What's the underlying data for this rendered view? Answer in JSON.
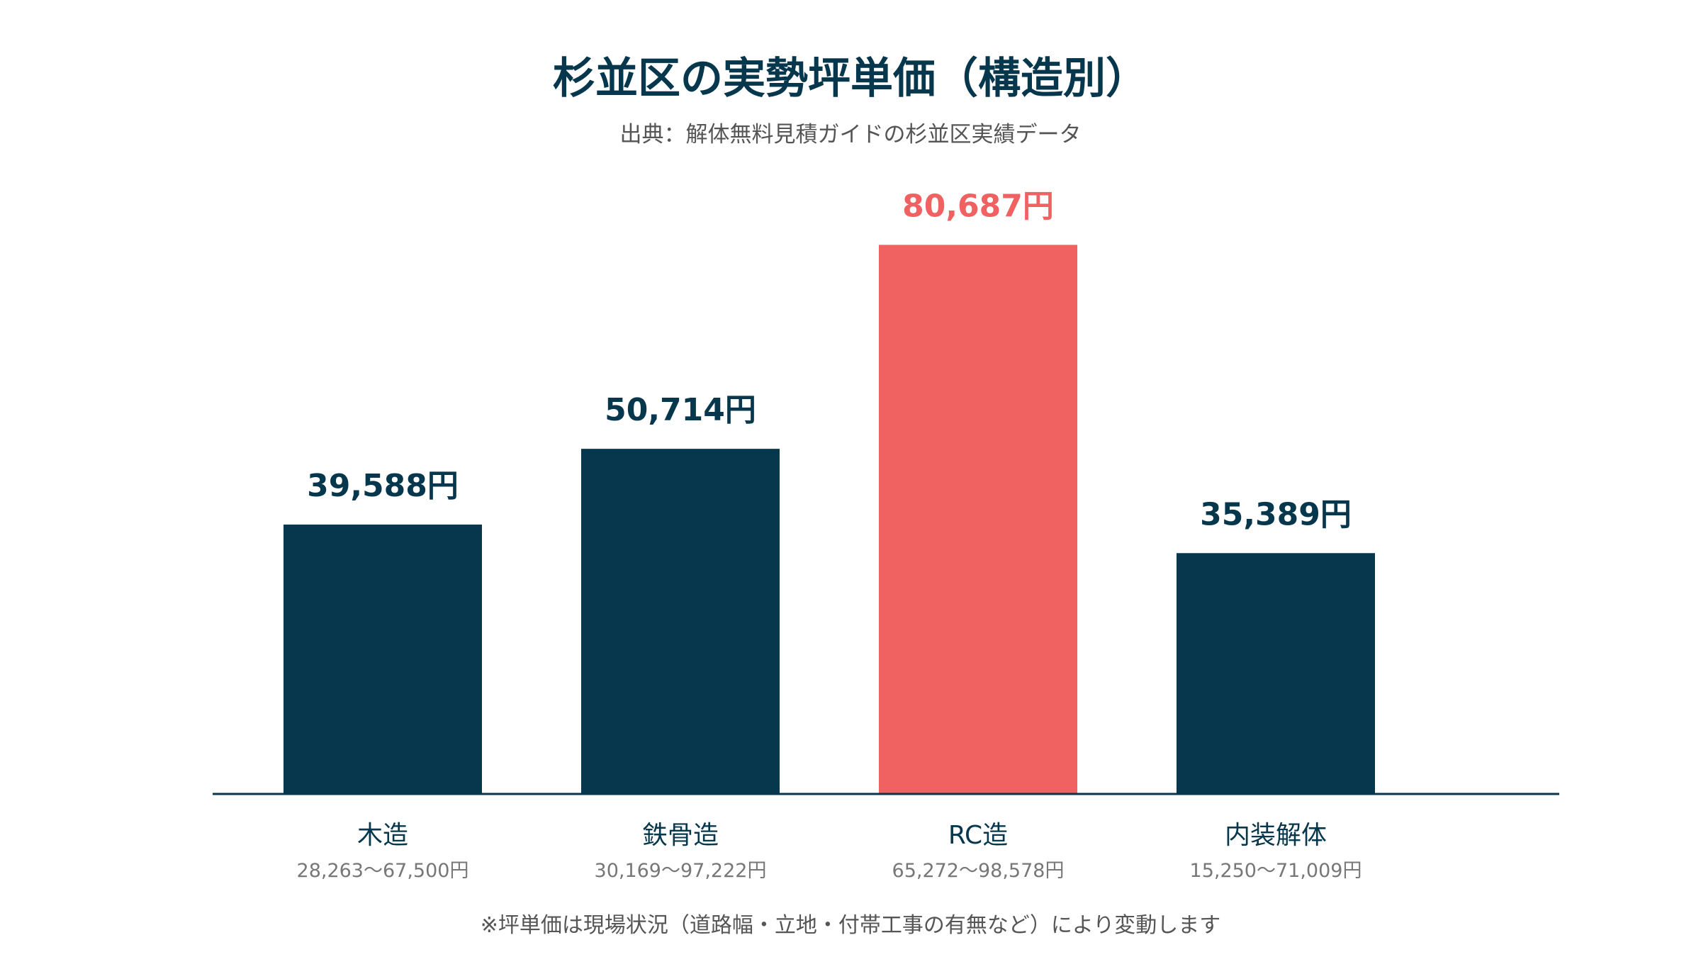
{
  "title": "杉並区の実勢坪単価（構造別）",
  "subtitle": "出典：解体無料見積ガイドの杉並区実績データ",
  "footnote": "※坪単価は現場状況（道路幅・立地・付帯工事の有無など）により変動します",
  "colors": {
    "primary": "#06374d",
    "highlight": "#f06262",
    "axis": "#06374d",
    "range_text": "#777777"
  },
  "chart_data": {
    "type": "bar",
    "title": "杉並区の実勢坪単価（構造別）",
    "xlabel": "",
    "ylabel": "",
    "ylim": [
      0,
      100000
    ],
    "grid": false,
    "categories": [
      "木造",
      "鉄骨造",
      "RC造",
      "内装解体"
    ],
    "values": [
      39588,
      50714,
      80687,
      35389
    ],
    "value_labels": [
      "39,588円",
      "50,714円",
      "80,687円",
      "35,389円"
    ],
    "ranges": [
      "28,263〜67,500円",
      "30,169〜97,222円",
      "65,272〜98,578円",
      "15,250〜71,009円"
    ],
    "highlight": [
      false,
      false,
      true,
      false
    ]
  }
}
